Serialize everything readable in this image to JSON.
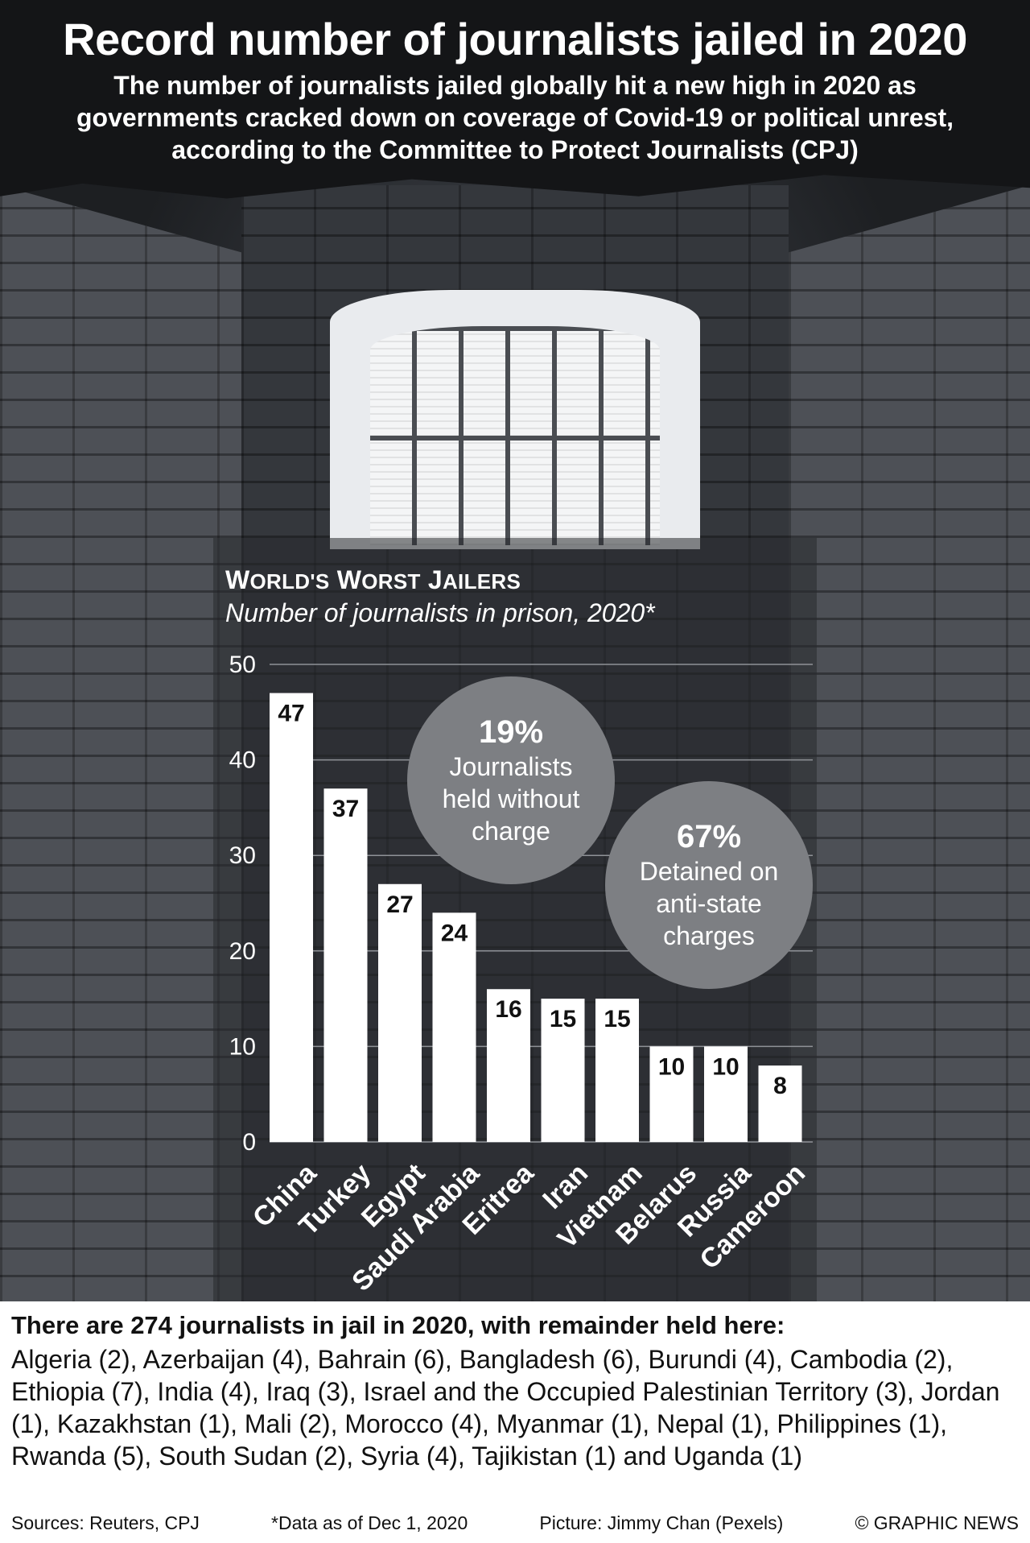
{
  "header": {
    "title": "Record number of journalists jailed in 2020",
    "subtitle": "The number of journalists jailed globally hit a new high in 2020 as governments cracked down on coverage of Covid-19 or political unrest, according to the Committee to Protect Journalists (CPJ)"
  },
  "chart_data": {
    "type": "bar",
    "title": "WORLD'S WORST JAILERS",
    "subtitle": "Number of journalists in prison, 2020*",
    "categories": [
      "China",
      "Turkey",
      "Egypt",
      "Saudi Arabia",
      "Eritrea",
      "Iran",
      "Vietnam",
      "Belarus",
      "Russia",
      "Cameroon"
    ],
    "values": [
      47,
      37,
      27,
      24,
      16,
      15,
      15,
      10,
      10,
      8
    ],
    "yticks": [
      0,
      10,
      20,
      30,
      40,
      50
    ],
    "ylim": [
      0,
      50
    ],
    "grid": true,
    "bar_color": "#ffffff"
  },
  "callouts": [
    {
      "pct": "19%",
      "text": "Journalists held without charge"
    },
    {
      "pct": "67%",
      "text": "Detained on anti-state charges"
    }
  ],
  "footer": {
    "heading": "There are 274 journalists in jail in 2020, with remainder held here:",
    "list": "Algeria (2), Azerbaijan (4), Bahrain (6), Bangladesh (6), Burundi (4), Cambodia (2), Ethiopia (7), India (4), Iraq (3), Israel and the Occupied Palestinian Territory (3), Jordan (1), Kazakhstan (1), Mali (2), Morocco (4), Myanmar (1), Nepal (1), Philippines (1), Rwanda (5), South Sudan (2), Syria (4), Tajikistan (1) and Uganda (1)",
    "sources": "Sources: Reuters, CPJ",
    "note": "*Data as of Dec 1, 2020",
    "picture": "Picture: Jimmy Chan (Pexels)",
    "copyright": "© GRAPHIC NEWS"
  }
}
